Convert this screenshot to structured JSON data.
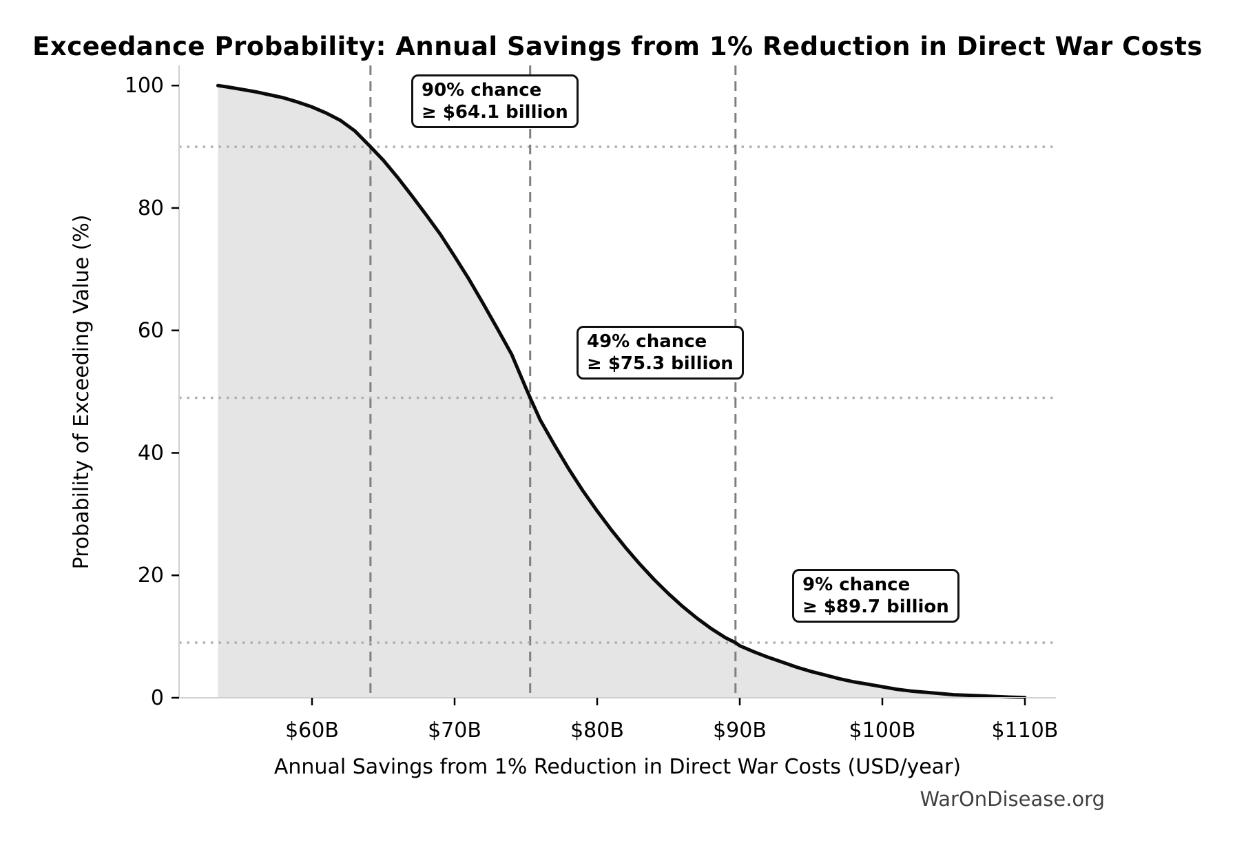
{
  "title": "Exceedance Probability: Annual Savings from 1% Reduction in Direct War Costs",
  "watermark": "WarOnDisease.org",
  "annotations": [
    {
      "line1": "90% chance",
      "line2": "≥ $64.1 billion"
    },
    {
      "line1": "49% chance",
      "line2": "≥ $75.3 billion"
    },
    {
      "line1": "9% chance",
      "line2": "≥ $89.7 billion"
    }
  ],
  "colors": {
    "curve": "#0a0a0a",
    "fill": "#e5e5e5",
    "dashed_marker": "#7f7f7f",
    "dotted_grid": "#b0b0b0",
    "spine": "#d0d0d0",
    "tick": "#000000",
    "watermark": "#404040"
  },
  "chart_data": {
    "type": "area",
    "title": "Exceedance Probability: Annual Savings from 1% Reduction in Direct War Costs",
    "xlabel": "Annual Savings from 1% Reduction in Direct War Costs (USD/year)",
    "ylabel": "Probability of Exceeding Value (%)",
    "x_unit": "USD billions per year",
    "xlim": [
      50.7,
      112.2
    ],
    "ylim": [
      0,
      100
    ],
    "grid": "dotted horizontal lines only at marker probabilities; dashed vertical lines at marker values",
    "legend": "none",
    "x_ticks": [
      {
        "value": 60,
        "label": "$60B"
      },
      {
        "value": 70,
        "label": "$70B"
      },
      {
        "value": 80,
        "label": "$80B"
      },
      {
        "value": 90,
        "label": "$90B"
      },
      {
        "value": 100,
        "label": "$100B"
      },
      {
        "value": 110,
        "label": "$110B"
      }
    ],
    "y_ticks": [
      {
        "value": 0,
        "label": "0"
      },
      {
        "value": 20,
        "label": "20"
      },
      {
        "value": 40,
        "label": "40"
      },
      {
        "value": 60,
        "label": "60"
      },
      {
        "value": 80,
        "label": "80"
      },
      {
        "value": 100,
        "label": "100"
      }
    ],
    "markers": [
      {
        "x": 64.1,
        "prob": 90
      },
      {
        "x": 75.3,
        "prob": 49
      },
      {
        "x": 89.7,
        "prob": 9
      }
    ],
    "curve": [
      [
        53.4,
        100.0
      ],
      [
        53.7,
        99.9
      ],
      [
        54,
        99.8
      ],
      [
        55,
        99.4
      ],
      [
        56,
        99.0
      ],
      [
        57,
        98.5
      ],
      [
        58,
        98.0
      ],
      [
        59,
        97.3
      ],
      [
        60,
        96.5
      ],
      [
        61,
        95.5
      ],
      [
        62,
        94.3
      ],
      [
        63,
        92.6
      ],
      [
        64.1,
        90.0
      ],
      [
        65,
        87.8
      ],
      [
        66,
        85.0
      ],
      [
        67,
        82.0
      ],
      [
        68,
        78.9
      ],
      [
        69,
        75.7
      ],
      [
        70,
        72.1
      ],
      [
        71,
        68.4
      ],
      [
        72,
        64.4
      ],
      [
        73,
        60.3
      ],
      [
        74,
        56.1
      ],
      [
        75,
        50.6
      ],
      [
        75.3,
        49.0
      ],
      [
        76,
        45.4
      ],
      [
        77,
        41.3
      ],
      [
        78,
        37.4
      ],
      [
        79,
        33.8
      ],
      [
        80,
        30.5
      ],
      [
        81,
        27.4
      ],
      [
        82,
        24.5
      ],
      [
        83,
        21.8
      ],
      [
        84,
        19.3
      ],
      [
        85,
        17.0
      ],
      [
        86,
        14.9
      ],
      [
        87,
        13.0
      ],
      [
        88,
        11.3
      ],
      [
        89,
        9.8
      ],
      [
        89.7,
        9.0
      ],
      [
        90,
        8.5
      ],
      [
        91,
        7.5
      ],
      [
        92,
        6.6
      ],
      [
        93,
        5.8
      ],
      [
        94,
        5.0
      ],
      [
        95,
        4.3
      ],
      [
        96,
        3.7
      ],
      [
        97,
        3.1
      ],
      [
        98,
        2.6
      ],
      [
        99,
        2.2
      ],
      [
        100,
        1.8
      ],
      [
        101,
        1.4
      ],
      [
        102,
        1.1
      ],
      [
        103,
        0.9
      ],
      [
        104,
        0.7
      ],
      [
        105,
        0.5
      ],
      [
        106,
        0.4
      ],
      [
        107,
        0.3
      ],
      [
        108,
        0.2
      ],
      [
        109,
        0.1
      ],
      [
        110,
        0.05
      ]
    ]
  }
}
